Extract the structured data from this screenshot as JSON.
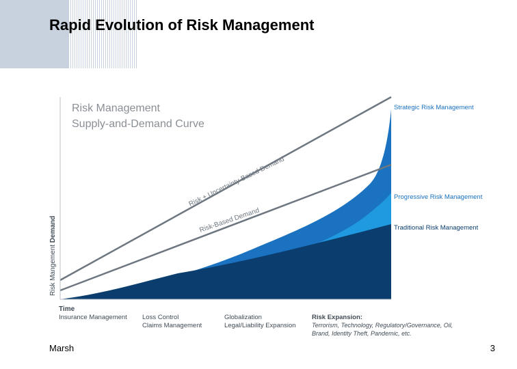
{
  "slide": {
    "title": "Rapid Evolution of Risk Management",
    "footer_left": "Marsh",
    "page_number": "3"
  },
  "diagram": {
    "title_line1": "Risk Management",
    "title_line2": "Supply-and-Demand Curve",
    "y_axis_prefix": "Risk Mangement ",
    "y_axis_bold": "Demand",
    "x_axis_label": "Time",
    "line_upper_label": "Risk + Uncertainty-Based Demand",
    "line_lower_label": "Risk-Based Demand",
    "layers": [
      {
        "name": "Strategic Risk Management",
        "color": "#1a72c0"
      },
      {
        "name": "Progressive Risk Management",
        "color": "#1f9ae0"
      },
      {
        "name": "Traditional Risk Management",
        "color": "#0b3e6e"
      }
    ],
    "time_groups": [
      {
        "line1": "Insurance Management",
        "line2": ""
      },
      {
        "line1": "Loss Control",
        "line2": "Claims Management"
      },
      {
        "line1": "Globalization",
        "line2": "Legal/Liability Expansion"
      },
      {
        "line1": "Risk Expansion:",
        "line2": "Terrorism, Technology, Regulatory/Governance, Oil,",
        "line3": "Brand, Identity Theft, Pandemic, etc."
      }
    ],
    "colors": {
      "title_text": "#8a8f96",
      "label_blue": "#1a72c0",
      "lines": "#6e7780",
      "axis_text": "#3f4a55"
    }
  }
}
